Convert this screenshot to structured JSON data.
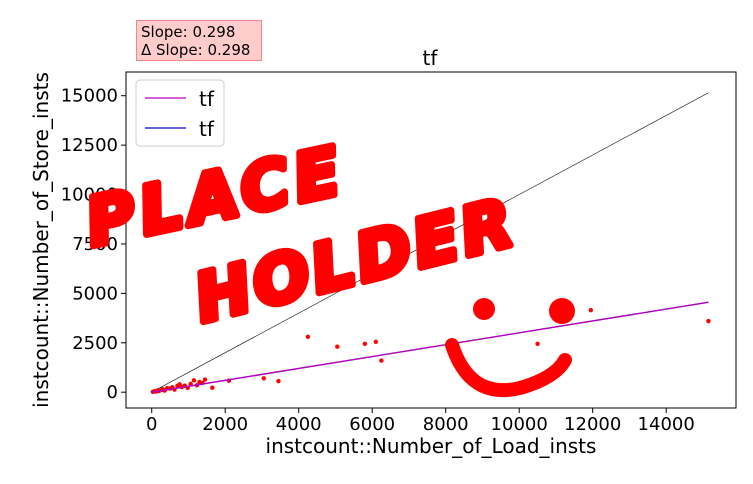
{
  "annotation": {
    "slope_text": "Slope: 0.298",
    "delta_slope_text": "Δ Slope: 0.298"
  },
  "overlay_text": "PLACE HOLDER",
  "colors": {
    "scatter": "#ff0000",
    "fit_line_1": "#bf00bf",
    "fit_line_2": "#0000cc",
    "reference_line": "#000000",
    "overlay": "#ff0000",
    "annotation_bg": "#ffcccc"
  },
  "chart_data": {
    "type": "scatter",
    "title": "tf",
    "xlabel": "instcount::Number_of_Load_insts",
    "ylabel": "instcount::Number_of_Store_insts",
    "xlim": [
      -700,
      15900
    ],
    "ylim": [
      -800,
      16200
    ],
    "xticks": [
      0,
      2000,
      4000,
      6000,
      8000,
      10000,
      12000,
      14000
    ],
    "yticks": [
      0,
      2500,
      5000,
      7500,
      10000,
      12500,
      15000
    ],
    "xtick_labels": [
      "0",
      "2000",
      "4000",
      "6000",
      "8000",
      "10000",
      "12000",
      "14000"
    ],
    "ytick_labels": [
      "0",
      "2500",
      "5000",
      "7500",
      "10000",
      "12500",
      "15000"
    ],
    "grid": false,
    "legend_position": "top-left",
    "legend": [
      "tf",
      "tf"
    ],
    "points": [
      [
        30,
        20
      ],
      [
        80,
        50
      ],
      [
        120,
        30
      ],
      [
        160,
        90
      ],
      [
        200,
        60
      ],
      [
        260,
        110
      ],
      [
        300,
        150
      ],
      [
        350,
        80
      ],
      [
        420,
        200
      ],
      [
        500,
        180
      ],
      [
        560,
        250
      ],
      [
        620,
        130
      ],
      [
        700,
        320
      ],
      [
        760,
        400
      ],
      [
        820,
        260
      ],
      [
        900,
        330
      ],
      [
        980,
        220
      ],
      [
        1060,
        420
      ],
      [
        1150,
        600
      ],
      [
        1230,
        350
      ],
      [
        1300,
        520
      ],
      [
        1380,
        470
      ],
      [
        1450,
        640
      ],
      [
        1650,
        230
      ],
      [
        2100,
        580
      ],
      [
        3050,
        700
      ],
      [
        3450,
        560
      ],
      [
        4250,
        2800
      ],
      [
        5050,
        2300
      ],
      [
        5800,
        2450
      ],
      [
        6100,
        2550
      ],
      [
        6250,
        1600
      ],
      [
        10500,
        2450
      ],
      [
        11950,
        4150
      ],
      [
        15150,
        3600
      ]
    ],
    "fit_lines": [
      {
        "name": "tf",
        "x": [
          0,
          15150
        ],
        "y": [
          0,
          4550
        ]
      },
      {
        "name": "tf",
        "x": [
          0,
          15150
        ],
        "y": [
          0,
          4550
        ]
      }
    ],
    "reference_line": {
      "x": [
        0,
        15150
      ],
      "y": [
        0,
        15150
      ]
    }
  }
}
